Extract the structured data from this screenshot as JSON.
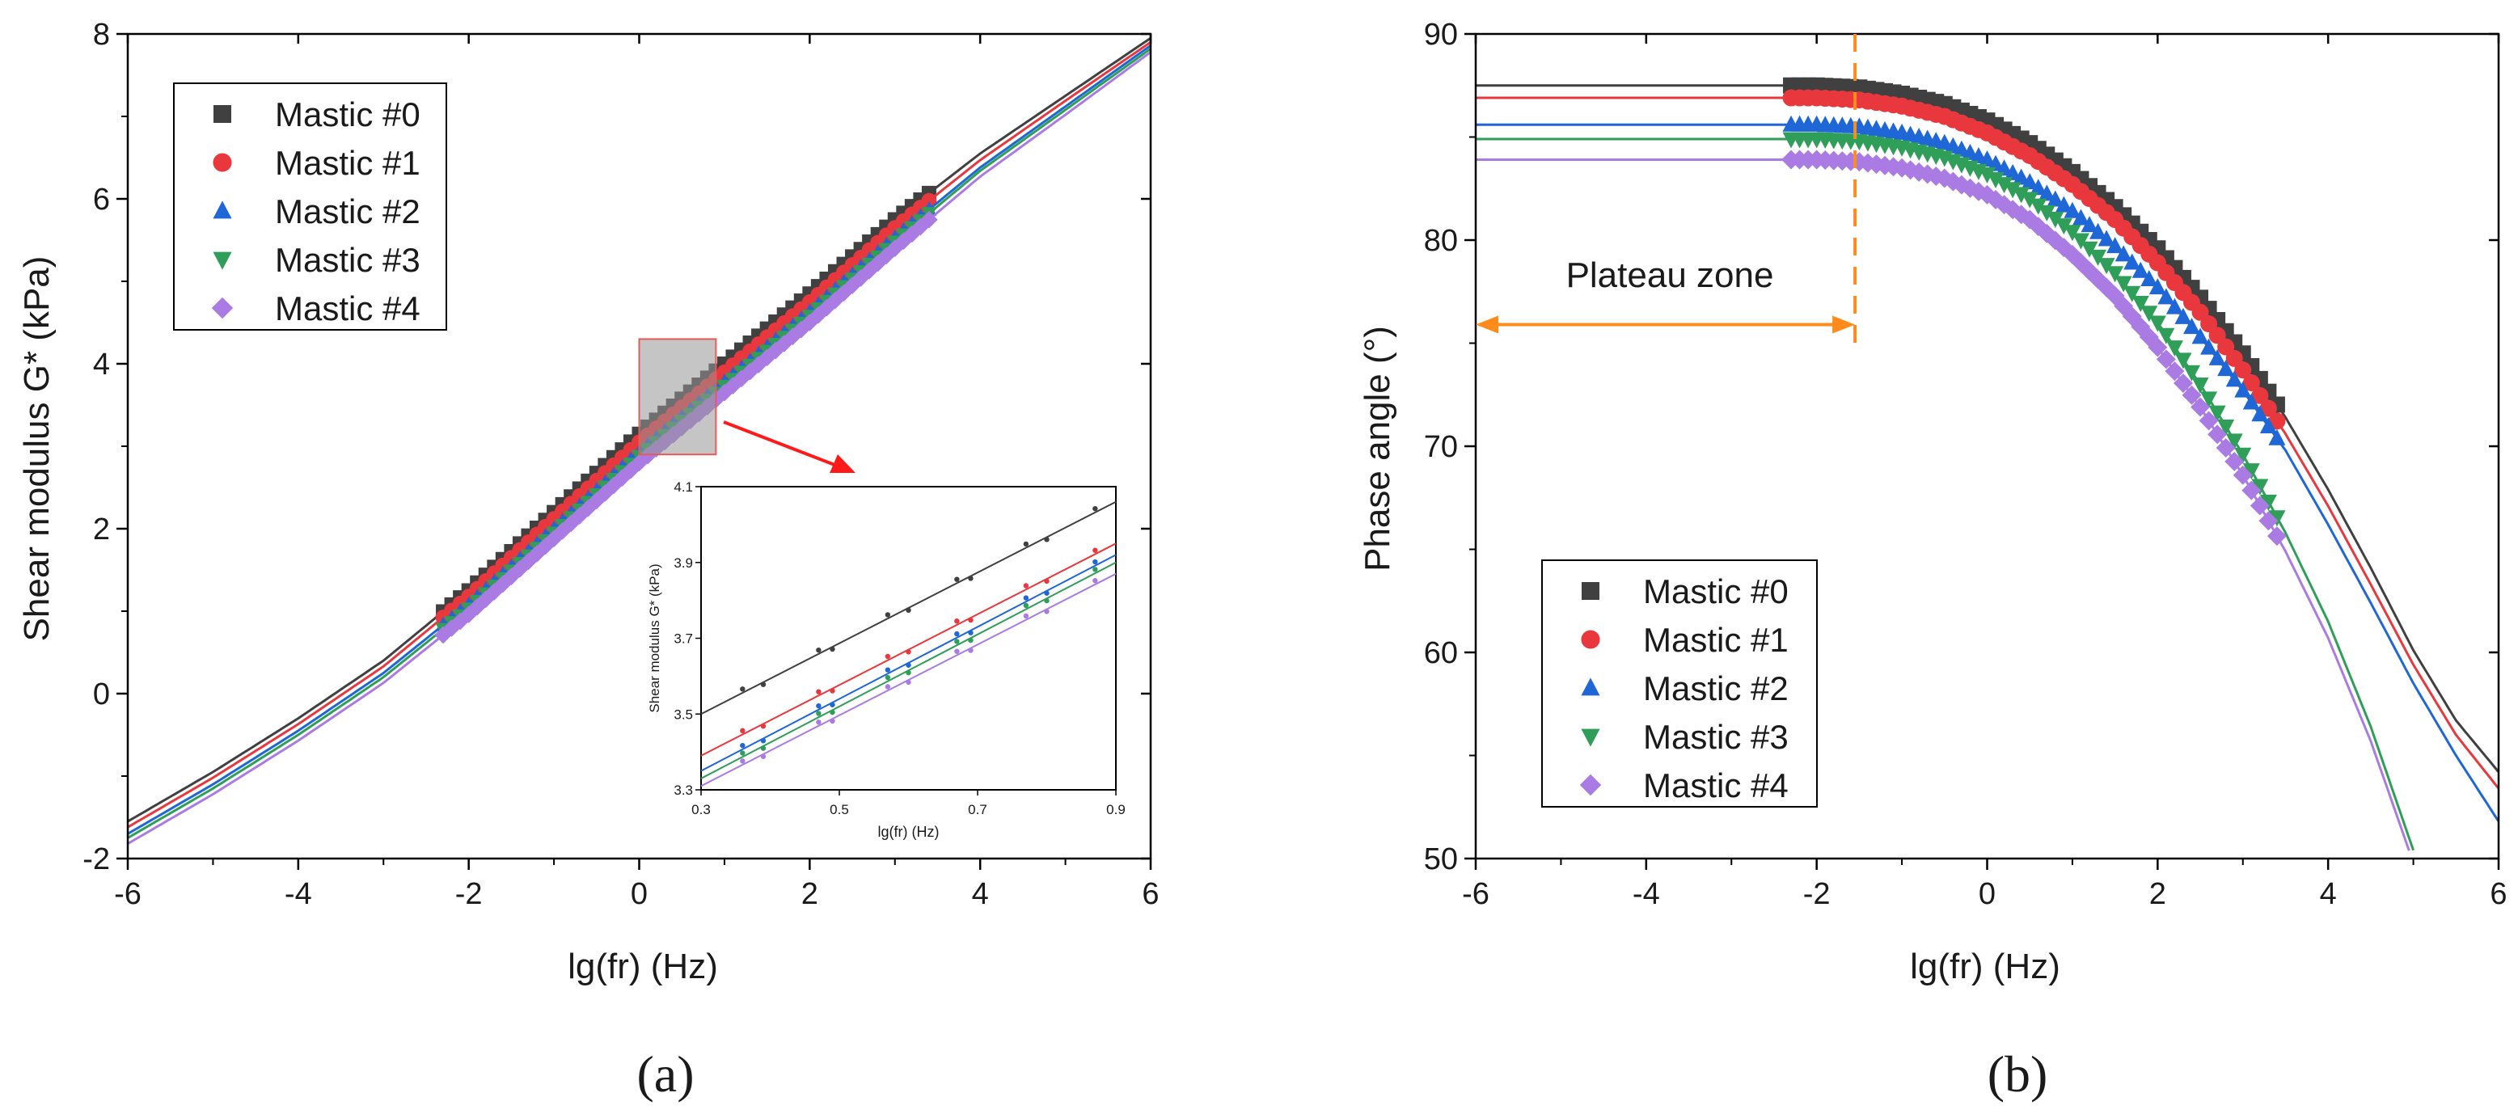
{
  "colors": {
    "mastic0": "#404040",
    "mastic1": "#e8383d",
    "mastic2": "#1f67d6",
    "mastic3": "#2e9e58",
    "mastic4": "#a97be3",
    "annotation": "#ff8c1a",
    "zoom_arrow": "#ff1a1a"
  },
  "chart_data": [
    {
      "id": "a",
      "type": "scatter",
      "panel_label": "(a)",
      "xlabel": "lg(fr) (Hz)",
      "ylabel": "Shear modulus G* (kPa)",
      "xlim": [
        -6,
        6
      ],
      "ylim": [
        -2,
        8
      ],
      "xticks": [
        -6,
        -4,
        -2,
        0,
        2,
        4,
        6
      ],
      "yticks": [
        -2,
        0,
        2,
        4,
        6,
        8
      ],
      "legend_position": "top-left",
      "fit_x_range": [
        -6,
        6
      ],
      "measured_x_range": [
        -2.3,
        3.4
      ],
      "series": [
        {
          "name": "Mastic #0",
          "marker": "square",
          "color_key": "mastic0",
          "curve": [
            [
              -6,
              -1.55
            ],
            [
              -5,
              -0.95
            ],
            [
              -4,
              -0.3
            ],
            [
              -3,
              0.4
            ],
            [
              -2,
              1.25
            ],
            [
              -1,
              2.2
            ],
            [
              0,
              3.15
            ],
            [
              1,
              4.0
            ],
            [
              2,
              4.85
            ],
            [
              3,
              5.75
            ],
            [
              4,
              6.55
            ],
            [
              5,
              7.25
            ],
            [
              6,
              7.95
            ]
          ]
        },
        {
          "name": "Mastic #1",
          "marker": "circle",
          "color_key": "mastic1",
          "curve": [
            [
              -6,
              -1.62
            ],
            [
              -5,
              -1.02
            ],
            [
              -4,
              -0.37
            ],
            [
              -3,
              0.33
            ],
            [
              -2,
              1.18
            ],
            [
              -1,
              2.12
            ],
            [
              0,
              3.05
            ],
            [
              1,
              3.9
            ],
            [
              2,
              4.75
            ],
            [
              3,
              5.65
            ],
            [
              4,
              6.47
            ],
            [
              5,
              7.19
            ],
            [
              6,
              7.9
            ]
          ]
        },
        {
          "name": "Mastic #2",
          "marker": "triangle-up",
          "color_key": "mastic2",
          "curve": [
            [
              -6,
              -1.7
            ],
            [
              -5,
              -1.1
            ],
            [
              -4,
              -0.45
            ],
            [
              -3,
              0.25
            ],
            [
              -2,
              1.08
            ],
            [
              -1,
              2.0
            ],
            [
              0,
              2.93
            ],
            [
              1,
              3.78
            ],
            [
              2,
              4.63
            ],
            [
              3,
              5.53
            ],
            [
              4,
              6.38
            ],
            [
              5,
              7.12
            ],
            [
              6,
              7.86
            ]
          ]
        },
        {
          "name": "Mastic #3",
          "marker": "triangle-down",
          "color_key": "mastic3",
          "curve": [
            [
              -6,
              -1.75
            ],
            [
              -5,
              -1.15
            ],
            [
              -4,
              -0.5
            ],
            [
              -3,
              0.2
            ],
            [
              -2,
              1.03
            ],
            [
              -1,
              1.95
            ],
            [
              0,
              2.88
            ],
            [
              1,
              3.73
            ],
            [
              2,
              4.58
            ],
            [
              3,
              5.48
            ],
            [
              4,
              6.34
            ],
            [
              5,
              7.08
            ],
            [
              6,
              7.82
            ]
          ]
        },
        {
          "name": "Mastic #4",
          "marker": "diamond",
          "color_key": "mastic4",
          "curve": [
            [
              -6,
              -1.82
            ],
            [
              -5,
              -1.22
            ],
            [
              -4,
              -0.57
            ],
            [
              -3,
              0.13
            ],
            [
              -2,
              0.96
            ],
            [
              -1,
              1.88
            ],
            [
              0,
              2.8
            ],
            [
              1,
              3.65
            ],
            [
              2,
              4.5
            ],
            [
              3,
              5.4
            ],
            [
              4,
              6.27
            ],
            [
              5,
              7.02
            ],
            [
              6,
              7.78
            ]
          ]
        }
      ],
      "inset": {
        "xlabel": "lg(fr) (Hz)",
        "ylabel": "Shear modulus G* (kPa)",
        "xlim": [
          0.3,
          0.9
        ],
        "ylim": [
          3.3,
          4.1
        ],
        "xticks": [
          0.3,
          0.5,
          0.7,
          0.9
        ],
        "yticks": [
          3.3,
          3.5,
          3.7,
          3.9,
          4.1
        ],
        "zoom_box_x": [
          0,
          0.9
        ],
        "zoom_box_y": [
          2.9,
          4.3
        ],
        "lines": [
          {
            "color_key": "mastic0",
            "y_start": 3.5,
            "y_end": 4.06
          },
          {
            "color_key": "mastic1",
            "y_start": 3.39,
            "y_end": 3.95
          },
          {
            "color_key": "mastic2",
            "y_start": 3.35,
            "y_end": 3.92
          },
          {
            "color_key": "mastic3",
            "y_start": 3.33,
            "y_end": 3.9
          },
          {
            "color_key": "mastic4",
            "y_start": 3.31,
            "y_end": 3.87
          }
        ],
        "points_x": [
          0.36,
          0.39,
          0.47,
          0.49,
          0.57,
          0.6,
          0.67,
          0.69,
          0.77,
          0.8,
          0.87
        ]
      }
    },
    {
      "id": "b",
      "type": "scatter",
      "panel_label": "(b)",
      "xlabel": "lg(fr) (Hz)",
      "ylabel": "Phase angle (°)",
      "xlim": [
        -6,
        6
      ],
      "ylim": [
        50,
        90
      ],
      "xticks": [
        -6,
        -4,
        -2,
        0,
        2,
        4,
        6
      ],
      "yticks": [
        50,
        60,
        70,
        80,
        90
      ],
      "legend_position": "bottom-left",
      "fit_x_range": [
        -6,
        6
      ],
      "measured_x_range": [
        -2.3,
        3.4
      ],
      "annotation": {
        "text": "Plateau zone",
        "divider_x": -1.55,
        "arrow_from_x": -6,
        "arrow_to_x": -1.55,
        "arrow_y": 75.9
      },
      "series": [
        {
          "name": "Mastic #0",
          "marker": "square",
          "color_key": "mastic0",
          "curve": [
            [
              -6,
              87.5
            ],
            [
              -2,
              87.5
            ],
            [
              -1.5,
              87.4
            ],
            [
              -1,
              87.1
            ],
            [
              -0.5,
              86.6
            ],
            [
              0,
              85.8
            ],
            [
              0.5,
              84.7
            ],
            [
              1,
              83.3
            ],
            [
              1.5,
              81.6
            ],
            [
              2,
              79.6
            ],
            [
              2.5,
              77.2
            ],
            [
              3,
              74.5
            ],
            [
              3.5,
              71.4
            ],
            [
              4,
              67.9
            ],
            [
              4.5,
              64.1
            ],
            [
              5,
              60.1
            ],
            [
              5.5,
              56.7
            ],
            [
              6,
              54.2
            ]
          ]
        },
        {
          "name": "Mastic #1",
          "marker": "circle",
          "color_key": "mastic1",
          "curve": [
            [
              -6,
              86.9
            ],
            [
              -2,
              86.9
            ],
            [
              -1.5,
              86.8
            ],
            [
              -1,
              86.5
            ],
            [
              -0.5,
              86.0
            ],
            [
              0,
              85.2
            ],
            [
              0.5,
              84.1
            ],
            [
              1,
              82.7
            ],
            [
              1.5,
              81.0
            ],
            [
              2,
              78.9
            ],
            [
              2.5,
              76.5
            ],
            [
              3,
              73.7
            ],
            [
              3.5,
              70.6
            ],
            [
              4,
              67.1
            ],
            [
              4.5,
              63.3
            ],
            [
              5,
              59.4
            ],
            [
              5.5,
              56.0
            ],
            [
              6,
              53.4
            ]
          ]
        },
        {
          "name": "Mastic #2",
          "marker": "triangle-up",
          "color_key": "mastic2",
          "curve": [
            [
              -6,
              85.6
            ],
            [
              -2,
              85.6
            ],
            [
              -1.5,
              85.5
            ],
            [
              -1,
              85.2
            ],
            [
              -0.5,
              84.7
            ],
            [
              0,
              83.9
            ],
            [
              0.5,
              82.8
            ],
            [
              1,
              81.4
            ],
            [
              1.5,
              79.7
            ],
            [
              2,
              77.7
            ],
            [
              2.5,
              75.3
            ],
            [
              3,
              72.7
            ],
            [
              3.5,
              69.8
            ],
            [
              4,
              66.2
            ],
            [
              4.5,
              62.4
            ],
            [
              5,
              58.5
            ],
            [
              5.5,
              55.0
            ],
            [
              6,
              51.8
            ]
          ]
        },
        {
          "name": "Mastic #3",
          "marker": "triangle-down",
          "color_key": "mastic3",
          "curve": [
            [
              -6,
              84.9
            ],
            [
              -2,
              84.9
            ],
            [
              -1.5,
              84.8
            ],
            [
              -1,
              84.5
            ],
            [
              -0.5,
              84.0
            ],
            [
              0,
              83.2
            ],
            [
              0.5,
              82.0
            ],
            [
              1,
              80.4
            ],
            [
              1.5,
              78.4
            ],
            [
              2,
              76.0
            ],
            [
              2.5,
              73.0
            ],
            [
              3,
              69.6
            ],
            [
              3.5,
              65.8
            ],
            [
              4,
              61.5
            ],
            [
              4.5,
              56.4
            ],
            [
              5,
              50.4
            ]
          ]
        },
        {
          "name": "Mastic #4",
          "marker": "diamond",
          "color_key": "mastic4",
          "curve": [
            [
              -6,
              83.9
            ],
            [
              -2,
              83.9
            ],
            [
              -1.5,
              83.8
            ],
            [
              -1,
              83.5
            ],
            [
              -0.5,
              83.0
            ],
            [
              0,
              82.2
            ],
            [
              0.5,
              81.0
            ],
            [
              1,
              79.3
            ],
            [
              1.5,
              77.3
            ],
            [
              2,
              74.8
            ],
            [
              2.5,
              71.9
            ],
            [
              3,
              68.6
            ],
            [
              3.5,
              64.9
            ],
            [
              4,
              60.7
            ],
            [
              4.5,
              55.7
            ],
            [
              5,
              49.8
            ]
          ]
        }
      ]
    }
  ]
}
